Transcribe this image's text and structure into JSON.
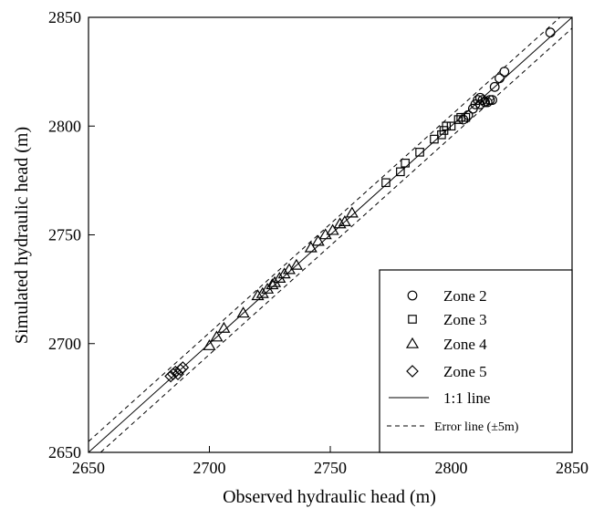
{
  "chart_data": {
    "type": "scatter",
    "xlabel": "Observed hydraulic head (m)",
    "ylabel": "Simulated hydraulic head (m)",
    "xlim": [
      2650,
      2850
    ],
    "ylim": [
      2650,
      2850
    ],
    "xticks": [
      2650,
      2700,
      2750,
      2800,
      2850
    ],
    "yticks": [
      2650,
      2700,
      2750,
      2800,
      2850
    ],
    "grid": false,
    "legend_position": "bottom-right",
    "series": [
      {
        "name": "Zone 2",
        "marker": "circle",
        "points": [
          [
            2805,
            2803
          ],
          [
            2807,
            2805
          ],
          [
            2809,
            2808
          ],
          [
            2810,
            2810
          ],
          [
            2811,
            2812
          ],
          [
            2812,
            2810
          ],
          [
            2812,
            2813
          ],
          [
            2813,
            2812
          ],
          [
            2814,
            2811
          ],
          [
            2815,
            2811
          ],
          [
            2816,
            2812
          ],
          [
            2817,
            2812
          ],
          [
            2818,
            2818
          ],
          [
            2820,
            2822
          ],
          [
            2822,
            2825
          ],
          [
            2841,
            2843
          ]
        ]
      },
      {
        "name": "Zone 3",
        "marker": "square",
        "points": [
          [
            2773,
            2774
          ],
          [
            2779,
            2779
          ],
          [
            2781,
            2783
          ],
          [
            2787,
            2788
          ],
          [
            2793,
            2794
          ],
          [
            2796,
            2796
          ],
          [
            2797,
            2798
          ],
          [
            2798,
            2800
          ],
          [
            2800,
            2800
          ],
          [
            2803,
            2803
          ],
          [
            2804,
            2804
          ],
          [
            2806,
            2804
          ]
        ]
      },
      {
        "name": "Zone 4",
        "marker": "triangle",
        "points": [
          [
            2700,
            2699
          ],
          [
            2703,
            2703
          ],
          [
            2706,
            2707
          ],
          [
            2714,
            2714
          ],
          [
            2720,
            2722
          ],
          [
            2722,
            2723
          ],
          [
            2724,
            2725
          ],
          [
            2726,
            2727
          ],
          [
            2727,
            2728
          ],
          [
            2729,
            2730
          ],
          [
            2731,
            2732
          ],
          [
            2733,
            2734
          ],
          [
            2736,
            2736
          ],
          [
            2742,
            2744
          ],
          [
            2745,
            2747
          ],
          [
            2748,
            2750
          ],
          [
            2751,
            2752
          ],
          [
            2754,
            2755
          ],
          [
            2756,
            2756
          ],
          [
            2759,
            2760
          ]
        ]
      },
      {
        "name": "Zone 5",
        "marker": "diamond",
        "points": [
          [
            2684,
            2685
          ],
          [
            2685,
            2686
          ],
          [
            2686,
            2687
          ],
          [
            2687,
            2686
          ],
          [
            2688,
            2688
          ],
          [
            2689,
            2689
          ]
        ]
      }
    ],
    "reference_lines": [
      {
        "name": "1:1 line",
        "style": "solid",
        "offset": 0
      },
      {
        "name": "Error line (±5m)",
        "style": "dashed",
        "offset": 5
      }
    ],
    "legend": [
      {
        "label": "Zone  2",
        "marker": "circle"
      },
      {
        "label": "Zone  3",
        "marker": "square"
      },
      {
        "label": "Zone  4",
        "marker": "triangle"
      },
      {
        "label": "Zone  5",
        "marker": "diamond"
      },
      {
        "label": "1:1 line",
        "marker": "solid-line"
      },
      {
        "label": "Error line (±5m)",
        "marker": "dashed-line"
      }
    ]
  }
}
